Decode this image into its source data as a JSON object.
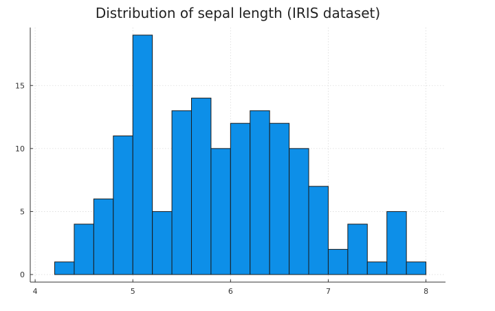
{
  "chart_data": {
    "type": "bar",
    "title": "Distribution of sepal length (IRIS dataset)",
    "xlabel": "",
    "ylabel": "",
    "bins": [
      {
        "start": 4.2,
        "end": 4.4,
        "count": 1
      },
      {
        "start": 4.4,
        "end": 4.6,
        "count": 4
      },
      {
        "start": 4.6,
        "end": 4.8,
        "count": 6
      },
      {
        "start": 4.8,
        "end": 5.0,
        "count": 11
      },
      {
        "start": 5.0,
        "end": 5.2,
        "count": 19
      },
      {
        "start": 5.2,
        "end": 5.4,
        "count": 5
      },
      {
        "start": 5.4,
        "end": 5.6,
        "count": 13
      },
      {
        "start": 5.6,
        "end": 5.8,
        "count": 14
      },
      {
        "start": 5.8,
        "end": 6.0,
        "count": 10
      },
      {
        "start": 6.0,
        "end": 6.2,
        "count": 12
      },
      {
        "start": 6.2,
        "end": 6.4,
        "count": 13
      },
      {
        "start": 6.4,
        "end": 6.6,
        "count": 12
      },
      {
        "start": 6.6,
        "end": 6.8,
        "count": 10
      },
      {
        "start": 6.8,
        "end": 7.0,
        "count": 7
      },
      {
        "start": 7.0,
        "end": 7.2,
        "count": 2
      },
      {
        "start": 7.2,
        "end": 7.4,
        "count": 4
      },
      {
        "start": 7.4,
        "end": 7.6,
        "count": 1
      },
      {
        "start": 7.6,
        "end": 7.8,
        "count": 5
      },
      {
        "start": 7.8,
        "end": 8.0,
        "count": 1
      }
    ],
    "x_ticks": [
      4,
      5,
      6,
      7,
      8
    ],
    "y_ticks": [
      0,
      5,
      10,
      15
    ],
    "xlim": [
      3.95,
      8.2
    ],
    "ylim": [
      -0.6,
      19.6
    ],
    "grid": true,
    "legend": "none",
    "bar_color": "#0d8fe8",
    "bar_edge_color": "#1a1a1a"
  }
}
